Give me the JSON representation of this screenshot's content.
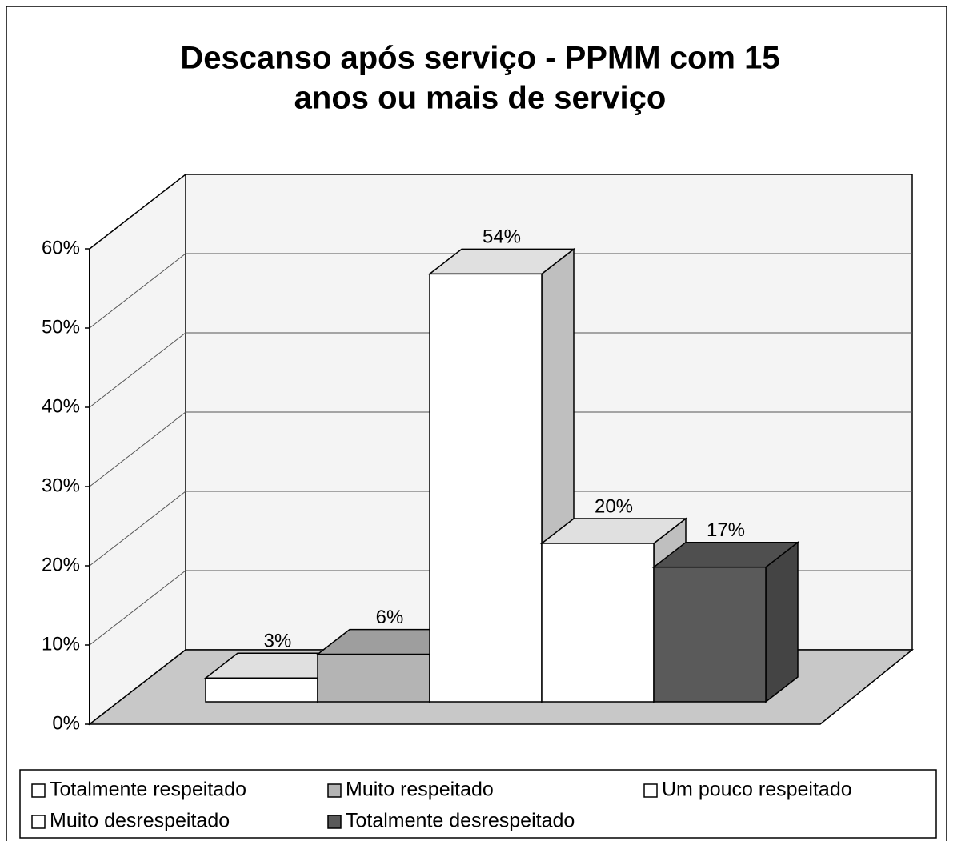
{
  "chart_data": {
    "type": "bar3d",
    "title": [
      "Descanso após serviço - PPMM com 15",
      "anos ou mais de serviço"
    ],
    "series": [
      {
        "name": "Totalmente respeitado",
        "color": "#ffffff",
        "values": [
          3
        ],
        "value_labels": [
          "3%"
        ]
      },
      {
        "name": "Muito respeitado",
        "color": "#b4b4b4",
        "values": [
          6
        ],
        "value_labels": [
          "6%"
        ]
      },
      {
        "name": "Um pouco respeitado",
        "color": "#ffffff",
        "values": [
          54
        ],
        "value_labels": [
          "54%"
        ]
      },
      {
        "name": "Muito desrespeitado",
        "color": "#ffffff",
        "values": [
          20
        ],
        "value_labels": [
          "20%"
        ]
      },
      {
        "name": "Totalmente desrespeitado",
        "color": "#5a5a5a",
        "values": [
          17
        ],
        "value_labels": [
          "17%"
        ]
      }
    ],
    "ylim": [
      0,
      60
    ],
    "yticks": [
      {
        "value": 0,
        "label": "0%"
      },
      {
        "value": 10,
        "label": "10%"
      },
      {
        "value": 20,
        "label": "20%"
      },
      {
        "value": 30,
        "label": "30%"
      },
      {
        "value": 40,
        "label": "40%"
      },
      {
        "value": 50,
        "label": "50%"
      },
      {
        "value": 60,
        "label": "60%"
      }
    ],
    "grid": true,
    "legend": "bottom"
  }
}
